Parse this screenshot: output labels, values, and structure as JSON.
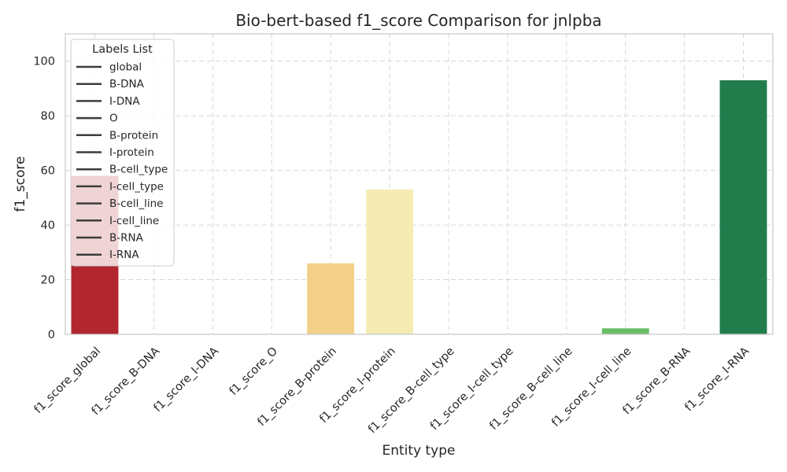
{
  "chart_data": {
    "type": "bar",
    "title": "Bio-bert-based f1_score Comparison for jnlpba",
    "xlabel": "Entity type",
    "ylabel": "f1_score",
    "ylim": [
      0,
      110
    ],
    "yticks": [
      0,
      20,
      40,
      60,
      80,
      100
    ],
    "grid": true,
    "categories": [
      "f1_score_global",
      "f1_score_B-DNA",
      "f1_score_I-DNA",
      "f1_score_O",
      "f1_score_B-protein",
      "f1_score_I-protein",
      "f1_score_B-cell_type",
      "f1_score_I-cell_type",
      "f1_score_B-cell_line",
      "f1_score_I-cell_line",
      "f1_score_B-RNA",
      "f1_score_I-RNA"
    ],
    "values": [
      58,
      0,
      0,
      0,
      26,
      53,
      0,
      0,
      0,
      2.2,
      0,
      93
    ],
    "colors": [
      "#b2262f",
      "#d4372f",
      "#ef6b43",
      "#f8a05d",
      "#f3d08a",
      "#f4ecb2",
      "#e8f5a8",
      "#c1e59c",
      "#9dd37f",
      "#6abd68",
      "#3a9e55",
      "#217e4c"
    ],
    "legend": {
      "title": "Labels List",
      "position": "upper-left",
      "entries": [
        "global",
        "B-DNA",
        "I-DNA",
        "O",
        "B-protein",
        "I-protein",
        "B-cell_type",
        "I-cell_type",
        "B-cell_line",
        "I-cell_line",
        "B-RNA",
        "I-RNA"
      ]
    }
  }
}
